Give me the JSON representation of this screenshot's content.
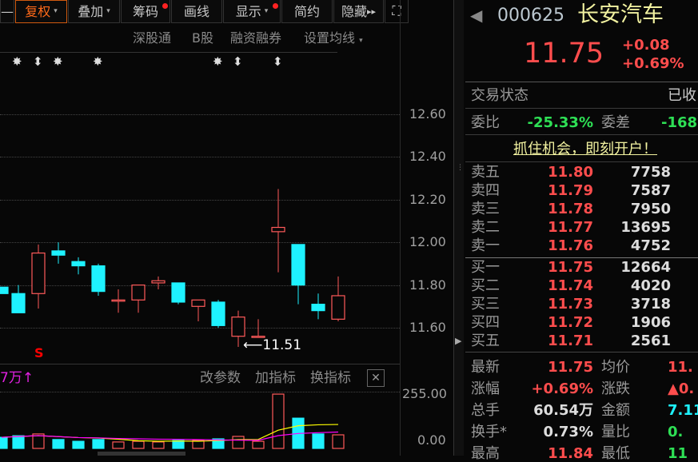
{
  "toolbar": {
    "items": [
      {
        "label": "—"
      },
      {
        "label": "复权",
        "active": true,
        "caret": "▾"
      },
      {
        "label": "叠加",
        "caret": "▾"
      },
      {
        "label": "筹码",
        "dot": true
      },
      {
        "label": "画线"
      },
      {
        "label": "显示",
        "caret": "▾",
        "dot": true
      },
      {
        "label": "简约"
      },
      {
        "label": "隐藏",
        "suffix": "▸▸"
      }
    ],
    "expand_icon": "expand-icon"
  },
  "subbar": {
    "items": [
      "深股通",
      "B股",
      "融资融券",
      "设置均线"
    ],
    "caret": "▾"
  },
  "markers": [
    "✸",
    "⬍",
    "✸",
    "✸",
    "✸",
    "⬍",
    "⬍"
  ],
  "colors": {
    "up": "#ff5a5a",
    "down": "#1ef2ff",
    "ma5": "#ffff00",
    "ma10": "#ff00ff",
    "accent": "#ff6a1a"
  },
  "chart_data": {
    "type": "candlestick",
    "price_axis": {
      "ticks": [
        "12.60",
        "12.40",
        "12.20",
        "12.00",
        "11.80",
        "11.60"
      ],
      "range": [
        11.5,
        12.6
      ]
    },
    "candles": [
      {
        "o": 11.79,
        "h": 11.79,
        "l": 11.76,
        "c": 11.76
      },
      {
        "o": 11.76,
        "h": 11.8,
        "l": 11.67,
        "c": 11.67
      },
      {
        "o": 11.76,
        "h": 11.99,
        "l": 11.69,
        "c": 11.95
      },
      {
        "o": 11.96,
        "h": 12.0,
        "l": 11.9,
        "c": 11.94
      },
      {
        "o": 11.91,
        "h": 11.93,
        "l": 11.85,
        "c": 11.89
      },
      {
        "o": 11.89,
        "h": 11.9,
        "l": 11.75,
        "c": 11.77
      },
      {
        "o": 11.73,
        "h": 11.78,
        "l": 11.67,
        "c": 11.73
      },
      {
        "o": 11.73,
        "h": 11.8,
        "l": 11.67,
        "c": 11.8
      },
      {
        "o": 11.81,
        "h": 11.84,
        "l": 11.78,
        "c": 11.82
      },
      {
        "o": 11.81,
        "h": 11.81,
        "l": 11.71,
        "c": 11.72
      },
      {
        "o": 11.7,
        "h": 11.73,
        "l": 11.63,
        "c": 11.73
      },
      {
        "o": 11.72,
        "h": 11.73,
        "l": 11.6,
        "c": 11.61
      },
      {
        "o": 11.56,
        "h": 11.68,
        "l": 11.51,
        "c": 11.65
      },
      {
        "o": 11.56,
        "h": 11.64,
        "l": 11.56,
        "c": 11.56
      },
      {
        "o": 12.05,
        "h": 12.25,
        "l": 11.86,
        "c": 12.07
      },
      {
        "o": 11.99,
        "h": 11.99,
        "l": 11.71,
        "c": 11.8
      },
      {
        "o": 11.71,
        "h": 11.76,
        "l": 11.64,
        "c": 11.68
      },
      {
        "o": 11.64,
        "h": 11.84,
        "l": 11.63,
        "c": 11.75
      }
    ],
    "low_label": "11.51",
    "signal_mark": "S",
    "volume": {
      "values": [
        50,
        57,
        65,
        40,
        32,
        40,
        29,
        32,
        29,
        36,
        36,
        43,
        54,
        32,
        244,
        136,
        65,
        61
      ],
      "ticks": [
        "255.00",
        "0.00"
      ],
      "range": [
        0,
        255
      ],
      "header": "7万↑"
    }
  },
  "indicator_bar": {
    "change_params": "改参数",
    "add_indicator": "加指标",
    "switch_indicator": "换指标",
    "close": "✕"
  },
  "quote": {
    "code": "000625",
    "name": "长安汽车",
    "price": "11.75",
    "change": "+0.08",
    "change_pct": "+0.69%"
  },
  "status": {
    "label": "交易状态",
    "value": "已收"
  },
  "ratio": {
    "label": "委比",
    "value": "-25.33%",
    "diff_label": "委差",
    "diff_value": "-168"
  },
  "promo": "抓住机会，即刻开户！",
  "asks": [
    {
      "label": "卖五",
      "price": "11.80",
      "vol": "7758"
    },
    {
      "label": "卖四",
      "price": "11.79",
      "vol": "7587"
    },
    {
      "label": "卖三",
      "price": "11.78",
      "vol": "7950"
    },
    {
      "label": "卖二",
      "price": "11.77",
      "vol": "13695"
    },
    {
      "label": "卖一",
      "price": "11.76",
      "vol": "4752"
    }
  ],
  "bids": [
    {
      "label": "买一",
      "price": "11.75",
      "vol": "12664"
    },
    {
      "label": "买二",
      "price": "11.74",
      "vol": "4020"
    },
    {
      "label": "买三",
      "price": "11.73",
      "vol": "3718"
    },
    {
      "label": "买四",
      "price": "11.72",
      "vol": "1906"
    },
    {
      "label": "买五",
      "price": "11.71",
      "vol": "2561"
    }
  ],
  "stats": [
    {
      "l1": "最新",
      "v1": "11.75",
      "c1": "red",
      "l2": "均价",
      "v2": "11.",
      "c2": "red"
    },
    {
      "l1": "涨幅",
      "v1": "+0.69%",
      "c1": "red",
      "l2": "涨跌",
      "v2": "▲0.",
      "c2": "red"
    },
    {
      "l1": "总手",
      "v1": "60.54万",
      "c1": "wht",
      "l2": "金额",
      "v2": "7.11",
      "c2": "cy"
    },
    {
      "l1": "换手*",
      "v1": "0.73%",
      "c1": "wht",
      "l2": "量比",
      "v2": "0.",
      "c2": "grn"
    },
    {
      "l1": "最高",
      "v1": "11.84",
      "c1": "red",
      "l2": "最低",
      "v2": "11",
      "c2": "grn"
    }
  ]
}
